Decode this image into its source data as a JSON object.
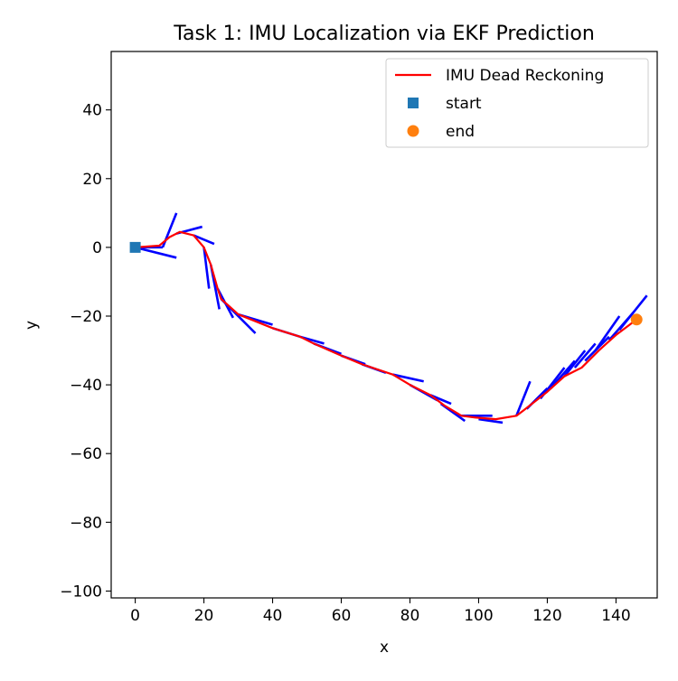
{
  "chart_data": {
    "type": "line",
    "title": "Task 1: IMU Localization via EKF Prediction",
    "xlabel": "x",
    "ylabel": "y",
    "xlim": [
      -7,
      152
    ],
    "ylim": [
      -102,
      57
    ],
    "xticks": [
      0,
      20,
      40,
      60,
      80,
      100,
      120,
      140
    ],
    "yticks": [
      -100,
      -80,
      -60,
      -40,
      -20,
      0,
      20,
      40
    ],
    "grid": false,
    "legend_position": "top-right",
    "legend": [
      {
        "label": "IMU Dead Reckoning",
        "kind": "line",
        "color": "#ff0000"
      },
      {
        "label": "start",
        "kind": "square",
        "color": "#1f77b4"
      },
      {
        "label": "end",
        "kind": "circle",
        "color": "#ff7f0e"
      }
    ],
    "series": [
      {
        "name": "IMU Dead Reckoning",
        "color": "#ff0000",
        "points": [
          [
            0,
            0
          ],
          [
            7,
            0.5
          ],
          [
            10,
            3
          ],
          [
            13,
            4.5
          ],
          [
            17,
            3.5
          ],
          [
            20,
            0
          ],
          [
            22,
            -5
          ],
          [
            24,
            -12
          ],
          [
            25,
            -15
          ],
          [
            30,
            -19.5
          ],
          [
            40,
            -23.5
          ],
          [
            48,
            -26
          ],
          [
            52,
            -28
          ],
          [
            60,
            -31.5
          ],
          [
            66,
            -34
          ],
          [
            75,
            -37
          ],
          [
            80,
            -40
          ],
          [
            86,
            -43
          ],
          [
            90,
            -46
          ],
          [
            95,
            -49
          ],
          [
            99,
            -49.5
          ],
          [
            105,
            -50
          ],
          [
            111,
            -49
          ],
          [
            113,
            -47.5
          ],
          [
            120,
            -42
          ],
          [
            125,
            -37.5
          ],
          [
            130,
            -35
          ],
          [
            135,
            -30
          ],
          [
            140,
            -25.5
          ],
          [
            146,
            -21
          ]
        ]
      }
    ],
    "start": {
      "x": 0,
      "y": 0,
      "color": "#1f77b4"
    },
    "end": {
      "x": 146,
      "y": -21,
      "color": "#ff7f0e"
    },
    "heading_segments": {
      "color": "#0000ff",
      "segments": [
        [
          [
            0,
            0
          ],
          [
            8,
            0
          ]
        ],
        [
          [
            0,
            0
          ],
          [
            12,
            -3
          ]
        ],
        [
          [
            8,
            0
          ],
          [
            12,
            10
          ]
        ],
        [
          [
            12,
            4
          ],
          [
            19.5,
            6
          ]
        ],
        [
          [
            17,
            3.5
          ],
          [
            23,
            1
          ]
        ],
        [
          [
            20,
            0
          ],
          [
            21.5,
            -12
          ]
        ],
        [
          [
            22,
            -5
          ],
          [
            24.5,
            -18
          ]
        ],
        [
          [
            24,
            -12
          ],
          [
            28.5,
            -20.5
          ]
        ],
        [
          [
            25,
            -15
          ],
          [
            35,
            -25
          ]
        ],
        [
          [
            30,
            -19.5
          ],
          [
            40,
            -22.5
          ]
        ],
        [
          [
            40,
            -23.5
          ],
          [
            48,
            -26
          ]
        ],
        [
          [
            48,
            -26
          ],
          [
            55,
            -28
          ]
        ],
        [
          [
            52,
            -28
          ],
          [
            60,
            -31
          ]
        ],
        [
          [
            60,
            -31.5
          ],
          [
            67,
            -34
          ]
        ],
        [
          [
            66,
            -34
          ],
          [
            73,
            -36.5
          ]
        ],
        [
          [
            75,
            -37
          ],
          [
            84,
            -39
          ]
        ],
        [
          [
            80,
            -40
          ],
          [
            88,
            -44.5
          ]
        ],
        [
          [
            86,
            -43
          ],
          [
            92,
            -45.5
          ]
        ],
        [
          [
            89,
            -45.5
          ],
          [
            96,
            -50.5
          ]
        ],
        [
          [
            95,
            -49
          ],
          [
            104,
            -49
          ]
        ],
        [
          [
            100,
            -50
          ],
          [
            107,
            -51
          ]
        ],
        [
          [
            111,
            -49
          ],
          [
            115,
            -39
          ]
        ],
        [
          [
            114,
            -47
          ],
          [
            120,
            -41
          ]
        ],
        [
          [
            118,
            -44
          ],
          [
            125,
            -35
          ]
        ],
        [
          [
            121,
            -41
          ],
          [
            128,
            -33
          ]
        ],
        [
          [
            125,
            -37.5
          ],
          [
            131,
            -30
          ]
        ],
        [
          [
            128,
            -35
          ],
          [
            134,
            -28
          ]
        ],
        [
          [
            131,
            -33
          ],
          [
            138,
            -26
          ]
        ],
        [
          [
            134,
            -30
          ],
          [
            141,
            -20
          ]
        ],
        [
          [
            138,
            -27
          ],
          [
            145,
            -19
          ]
        ],
        [
          [
            141,
            -24
          ],
          [
            149,
            -14
          ]
        ]
      ]
    }
  }
}
